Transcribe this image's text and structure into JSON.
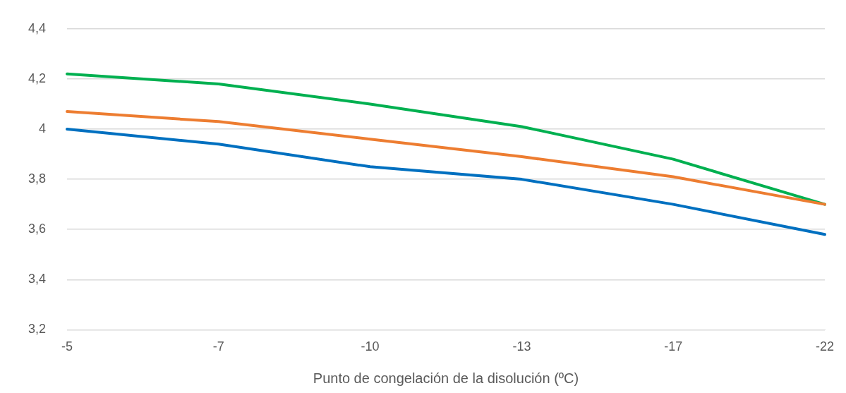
{
  "chart_data": {
    "type": "line",
    "xlabel": "Punto de congelación de la disolución (ºC)",
    "categories": [
      "-5",
      "-7",
      "-10",
      "-13",
      "-17",
      "-22"
    ],
    "series": [
      {
        "color": "#0070c0",
        "values": [
          4.0,
          3.94,
          3.85,
          3.8,
          3.7,
          3.58
        ]
      },
      {
        "color": "#ed7d31",
        "values": [
          4.07,
          4.03,
          3.96,
          3.89,
          3.81,
          3.7
        ]
      },
      {
        "color": "#00b050",
        "values": [
          4.22,
          4.18,
          4.1,
          4.01,
          3.88,
          3.7
        ]
      }
    ],
    "ylim": [
      3.2,
      4.4
    ],
    "yticks": [
      {
        "value": 3.2,
        "label": "3,2"
      },
      {
        "value": 3.4,
        "label": "3,4"
      },
      {
        "value": 3.6,
        "label": "3,6"
      },
      {
        "value": 3.8,
        "label": "3,8"
      },
      {
        "value": 4,
        "label": "4"
      },
      {
        "value": 4.2,
        "label": "4,2"
      },
      {
        "value": 4.4,
        "label": "4,4"
      }
    ],
    "grid": "y",
    "legend": false,
    "marker": "none",
    "line_style": "solid"
  }
}
